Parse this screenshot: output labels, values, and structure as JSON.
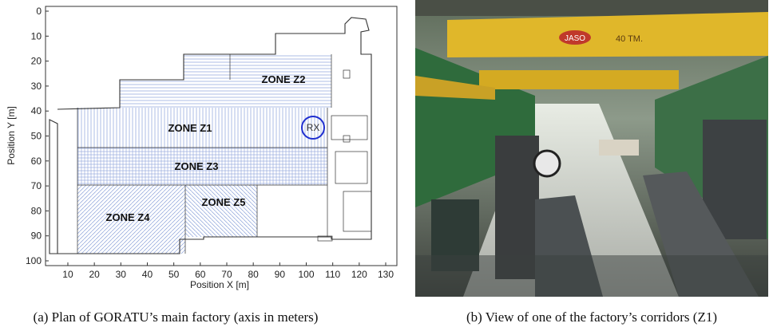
{
  "figure": {
    "plan": {
      "x_axis_label": "Position X [m]",
      "y_axis_label": "Position Y [m]",
      "xticks": [
        10,
        20,
        30,
        40,
        50,
        60,
        70,
        80,
        90,
        100,
        110,
        120,
        130
      ],
      "yticks": [
        0,
        10,
        20,
        30,
        40,
        50,
        60,
        70,
        80,
        90,
        100
      ],
      "zones": [
        "ZONE Z1",
        "ZONE Z2",
        "ZONE Z3",
        "ZONE Z4",
        "ZONE Z5"
      ],
      "receiver": "RX",
      "caption": "(a) Plan of GORATU’s main factory (axis in meters)"
    },
    "photo": {
      "crane_labels": [
        "JASO",
        "40 TM."
      ],
      "caption": "(b) View of one of the factory’s corridors (Z1)"
    }
  }
}
